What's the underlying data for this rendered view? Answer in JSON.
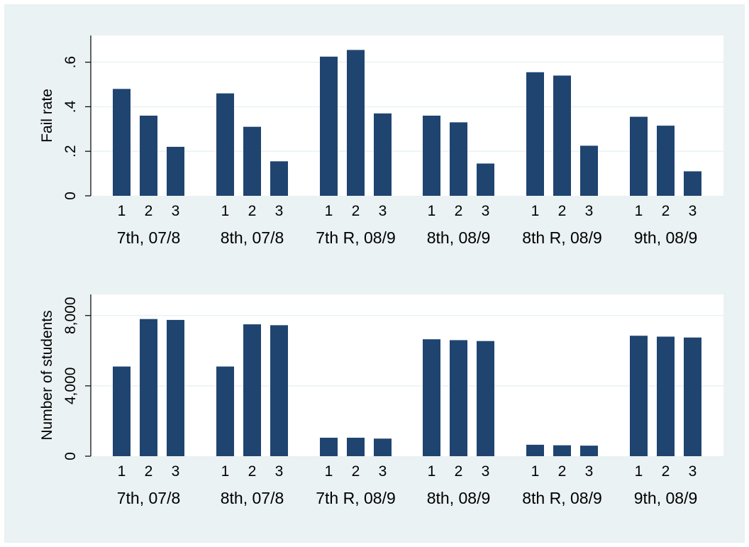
{
  "chart_data": [
    {
      "type": "bar",
      "ylabel": "Fail rate",
      "ylim": [
        0,
        0.72
      ],
      "yticks": [
        0,
        0.2,
        0.4,
        0.6
      ],
      "ytick_labels": [
        "0",
        ".2",
        ".4",
        ".6"
      ],
      "groups": [
        "7th, 07/8",
        "8th, 07/8",
        "7th R, 08/9",
        "8th, 08/9",
        "8th R, 08/9",
        "9th, 08/9"
      ],
      "categories": [
        "1",
        "2",
        "3"
      ],
      "values": [
        [
          0.48,
          0.36,
          0.22
        ],
        [
          0.46,
          0.31,
          0.155
        ],
        [
          0.625,
          0.655,
          0.37
        ],
        [
          0.36,
          0.33,
          0.145
        ],
        [
          0.555,
          0.54,
          0.225
        ],
        [
          0.355,
          0.315,
          0.11
        ]
      ],
      "grid": true,
      "bar_color": "#1f4470",
      "background_color": "#eaf2f3"
    },
    {
      "type": "bar",
      "ylabel": "Number of students",
      "ylim": [
        0,
        9200
      ],
      "yticks": [
        0,
        4000,
        8000
      ],
      "ytick_labels": [
        "0",
        "4,000",
        "8,000"
      ],
      "groups": [
        "7th, 07/8",
        "8th, 07/8",
        "7th R, 08/9",
        "8th, 08/9",
        "8th R, 08/9",
        "9th, 08/9"
      ],
      "categories": [
        "1",
        "2",
        "3"
      ],
      "values": [
        [
          5100,
          7800,
          7750
        ],
        [
          5100,
          7500,
          7450
        ],
        [
          1050,
          1050,
          1000
        ],
        [
          6650,
          6600,
          6550
        ],
        [
          650,
          620,
          600
        ],
        [
          6850,
          6800,
          6750
        ]
      ],
      "grid": true,
      "bar_color": "#1f4470",
      "background_color": "#eaf2f3"
    }
  ]
}
